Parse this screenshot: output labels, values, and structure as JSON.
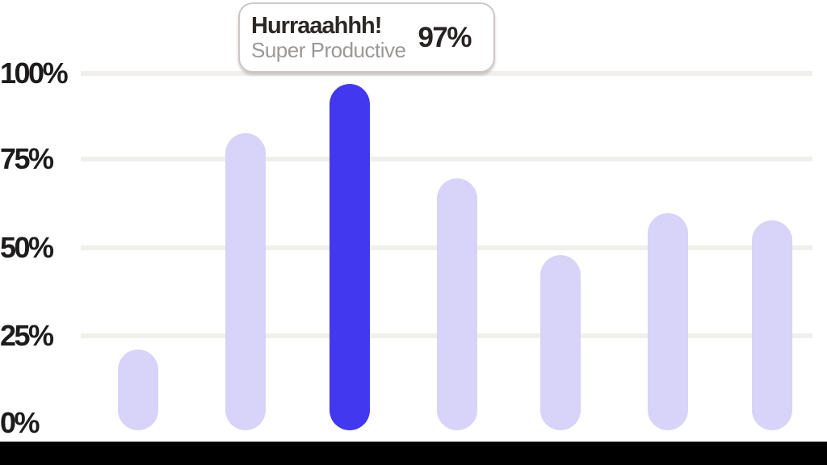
{
  "chart_data": {
    "type": "bar",
    "categories": [
      "",
      "",
      "",
      "",
      "",
      "",
      ""
    ],
    "values": [
      21,
      83,
      97,
      70,
      48,
      60,
      58
    ],
    "highlighted_index": 2,
    "y_tick_labels": [
      "100%",
      "75%",
      "50%",
      "25%",
      "0%"
    ],
    "ylim": [
      0,
      100
    ],
    "grid": "horizontal-only",
    "legend": "none",
    "bar_color": "#d8d3f8",
    "highlight_color": "#4238ef",
    "tooltip": {
      "title": "Hurraaahhh!",
      "subtitle": "Super Productive",
      "value": "97%"
    }
  }
}
